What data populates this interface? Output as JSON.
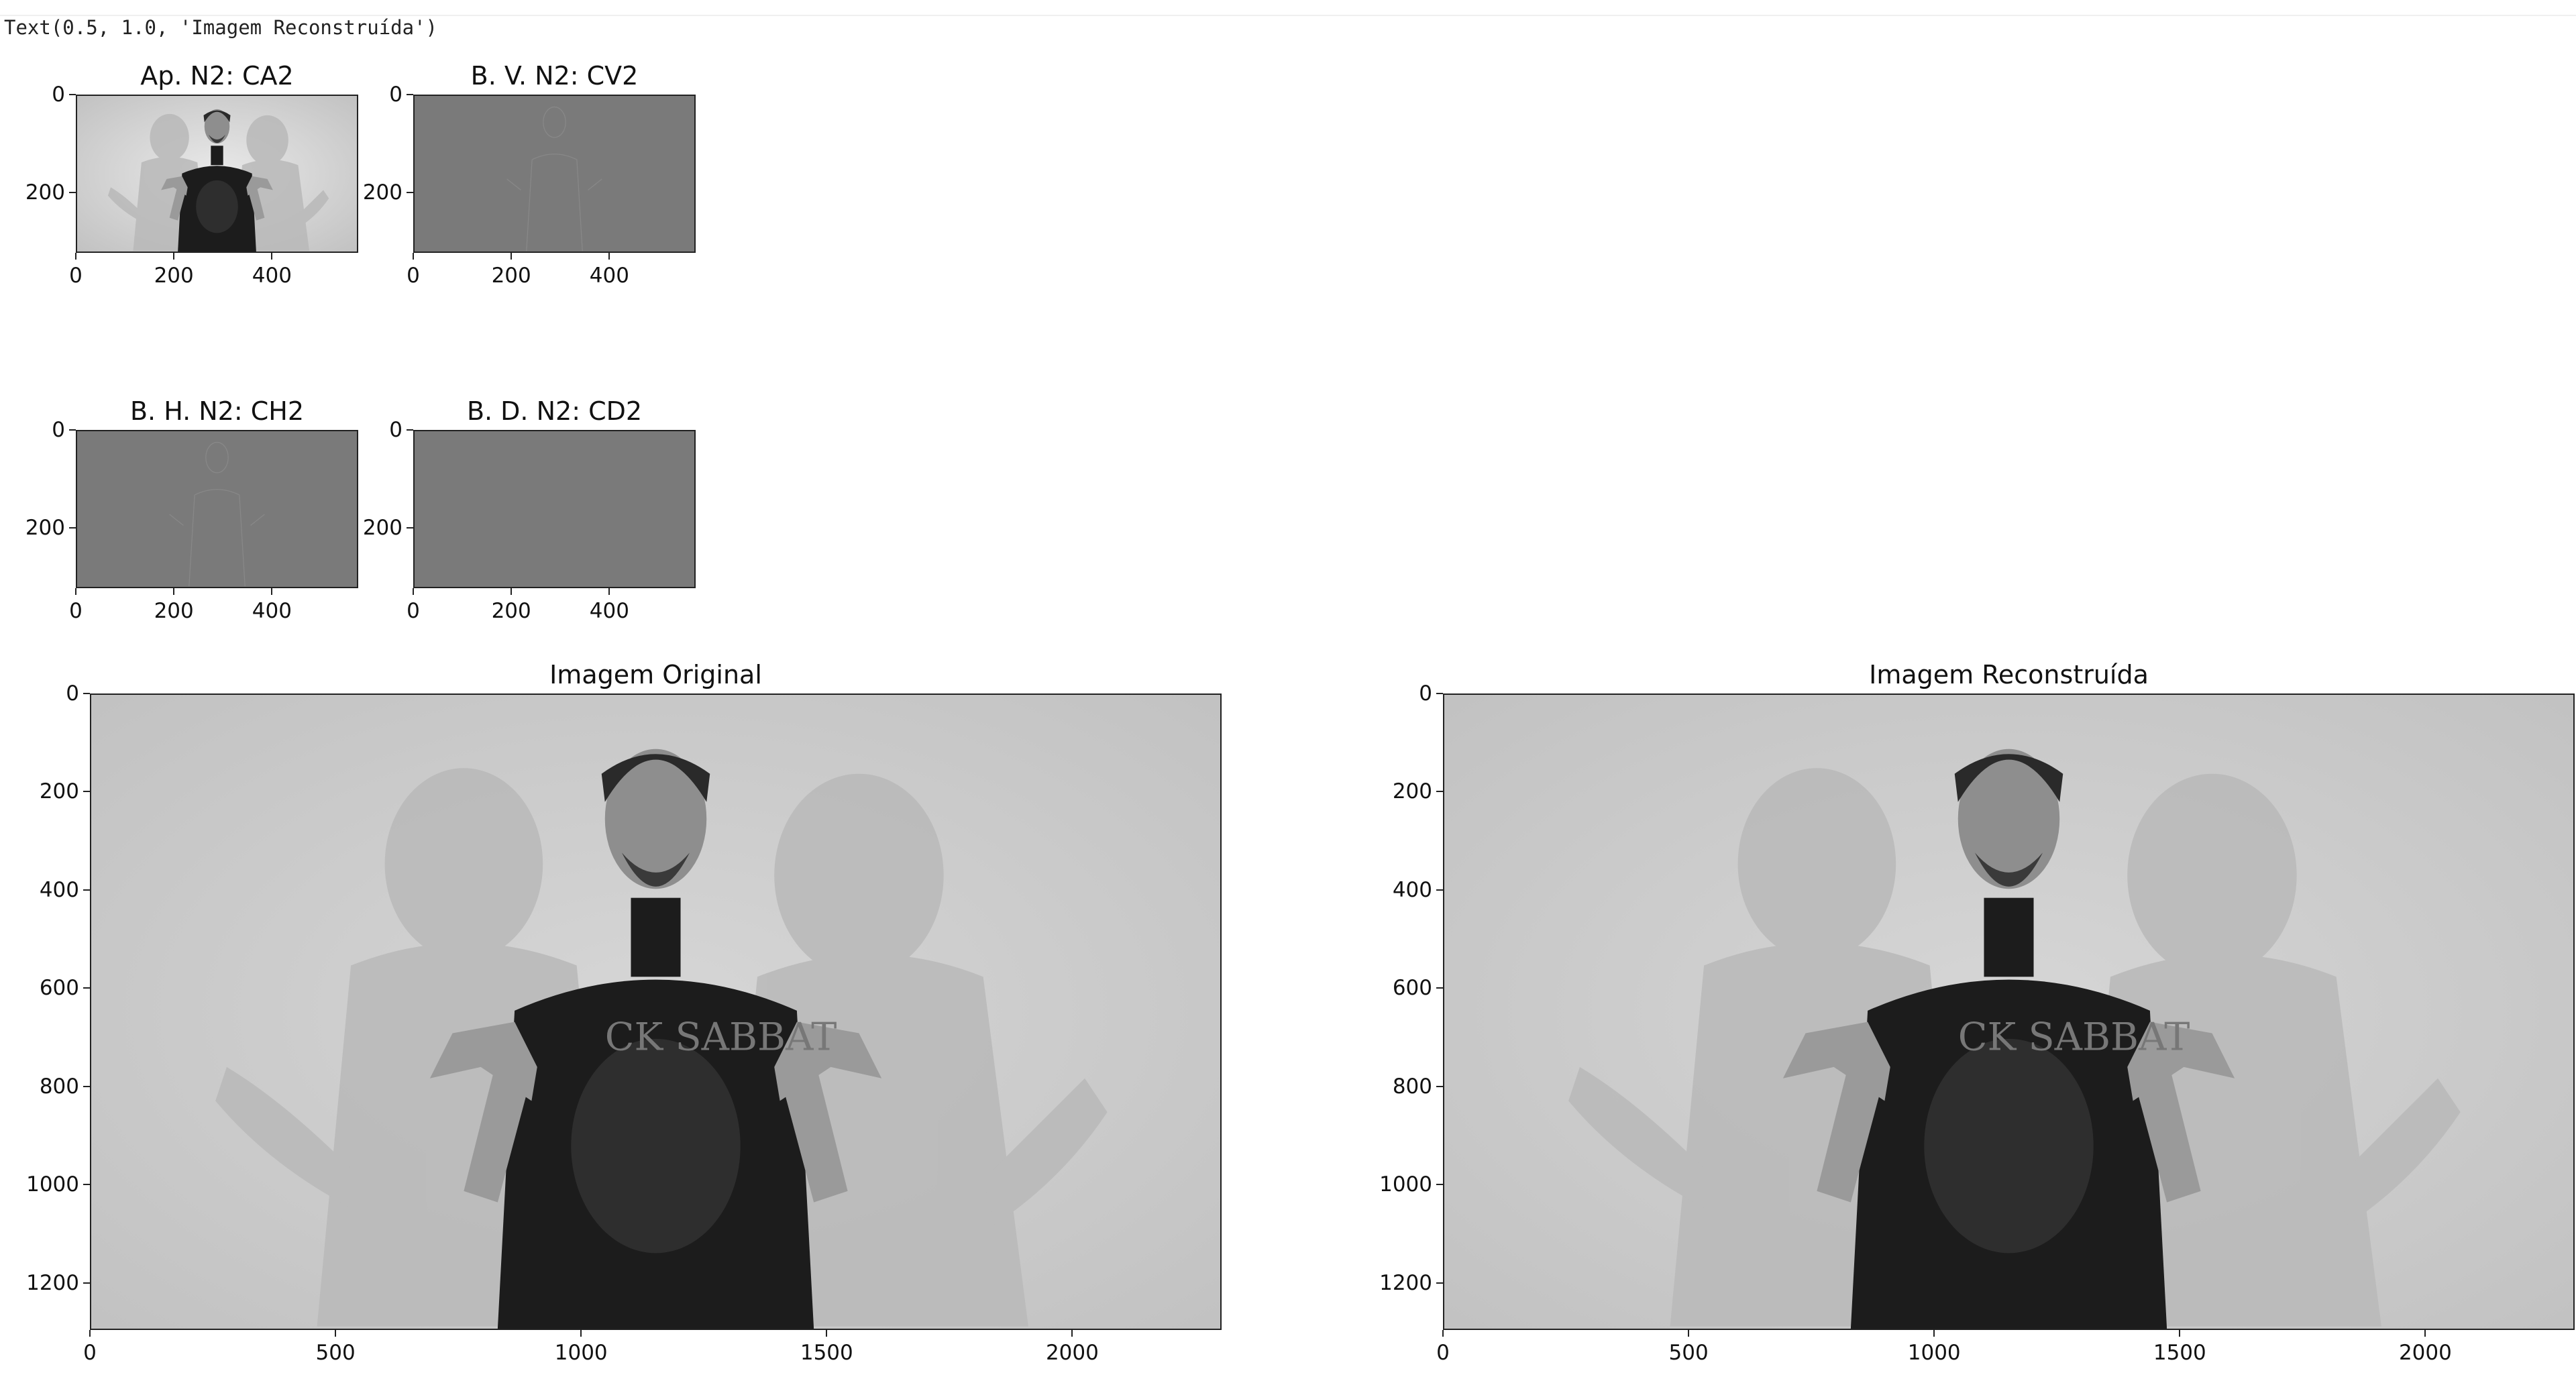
{
  "cell_output": "Text(0.5, 1.0, 'Imagem Reconstruída')",
  "chart_data": [
    {
      "type": "image",
      "title": "Ap. N2: CA2",
      "x_ticks": [
        "0",
        "200",
        "400"
      ],
      "y_ticks": [
        "0",
        "200"
      ],
      "shade": "approximation"
    },
    {
      "type": "image",
      "title": "B. V. N2: CV2",
      "x_ticks": [
        "0",
        "200",
        "400"
      ],
      "y_ticks": [
        "0",
        "200"
      ],
      "shade": "detail"
    },
    {
      "type": "image",
      "title": "B. H. N2: CH2",
      "x_ticks": [
        "0",
        "200",
        "400"
      ],
      "y_ticks": [
        "0",
        "200"
      ],
      "shade": "detail"
    },
    {
      "type": "image",
      "title": "B. D. N2: CD2",
      "x_ticks": [
        "0",
        "200",
        "400"
      ],
      "y_ticks": [
        "0",
        "200"
      ],
      "shade": "flat"
    },
    {
      "type": "image",
      "title": "Imagem Original",
      "x_ticks": [
        "0",
        "500",
        "1000",
        "1500",
        "2000"
      ],
      "y_ticks": [
        "0",
        "200",
        "400",
        "600",
        "800",
        "1000",
        "1200"
      ],
      "shade": "photo"
    },
    {
      "type": "image",
      "title": "Imagem Reconstruída",
      "x_ticks": [
        "0",
        "500",
        "1000",
        "1500",
        "2000"
      ],
      "y_ticks": [
        "0",
        "200",
        "400",
        "600",
        "800",
        "1000",
        "1200"
      ],
      "shade": "photo"
    }
  ],
  "shirt_text": "CK SABBAT"
}
